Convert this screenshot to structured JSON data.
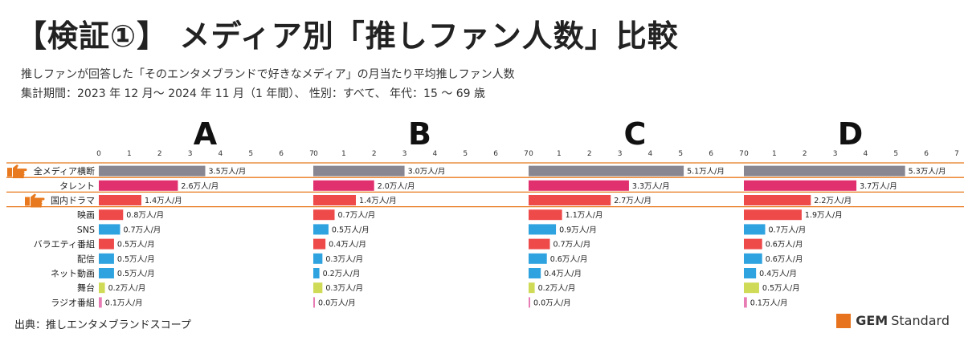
{
  "header": {
    "title": "【検証①】 メディア別「推しファン人数」比較",
    "subtitle1": "推しファンが回答した「そのエンタメブランドで好きなメディア」の月当たり平均推しファン人数",
    "subtitle2": "集計期間：2023 年 12 月～ 2024 年 11 月（1 年間）、 性別：すべて、 年代：15 ～ 69 歳"
  },
  "footer": {
    "source": "出典：推しエンタメブランドスコープ",
    "brand_gem": "GEM",
    "brand_standard": "Standard"
  },
  "colors": {
    "gray": "#878691",
    "magenta": "#e0306e",
    "red": "#ee4a4a",
    "blue": "#2ea3e0",
    "lime": "#cfdb56",
    "pink": "#e87cb4",
    "highlight": "#e8791e"
  },
  "chart_data": {
    "type": "bar",
    "orientation": "horizontal",
    "unit_suffix": "万人/月",
    "xlim": [
      0,
      7
    ],
    "xticks": [
      0,
      1,
      2,
      3,
      4,
      5,
      6,
      7
    ],
    "categories": [
      "全メディア横断",
      "タレント",
      "国内ドラマ",
      "映画",
      "SNS",
      "バラエティ番組",
      "配信",
      "ネット動画",
      "舞台",
      "ラジオ番組"
    ],
    "bar_colors": [
      "gray",
      "magenta",
      "red",
      "red",
      "blue",
      "red",
      "blue",
      "blue",
      "lime",
      "pink"
    ],
    "highlighted_categories": [
      "全メディア横断",
      "国内ドラマ"
    ],
    "highlight_icon": "pointing-hand-icon",
    "panels": [
      {
        "name": "A",
        "values": [
          3.5,
          2.6,
          1.4,
          0.8,
          0.7,
          0.5,
          0.5,
          0.5,
          0.2,
          0.1
        ],
        "labels": [
          "3.5万人/月",
          "2.6万人/月",
          "1.4万人/月",
          "0.8万人/月",
          "0.7万人/月",
          "0.5万人/月",
          "0.5万人/月",
          "0.5万人/月",
          "0.2万人/月",
          "0.1万人/月"
        ]
      },
      {
        "name": "B",
        "values": [
          3.0,
          2.0,
          1.4,
          0.7,
          0.5,
          0.4,
          0.3,
          0.2,
          0.3,
          0.0
        ],
        "labels": [
          "3.0万人/月",
          "2.0万人/月",
          "1.4万人/月",
          "0.7万人/月",
          "0.5万人/月",
          "0.4万人/月",
          "0.3万人/月",
          "0.2万人/月",
          "0.3万人/月",
          "0.0万人/月"
        ]
      },
      {
        "name": "C",
        "values": [
          5.1,
          3.3,
          2.7,
          1.1,
          0.9,
          0.7,
          0.6,
          0.4,
          0.2,
          0.0
        ],
        "labels": [
          "5.1万人/月",
          "3.3万人/月",
          "2.7万人/月",
          "1.1万人/月",
          "0.9万人/月",
          "0.7万人/月",
          "0.6万人/月",
          "0.4万人/月",
          "0.2万人/月",
          "0.0万人/月"
        ]
      },
      {
        "name": "D",
        "values": [
          5.3,
          3.7,
          2.2,
          1.9,
          0.7,
          0.6,
          0.6,
          0.4,
          0.5,
          0.1
        ],
        "labels": [
          "5.3万人/月",
          "3.7万人/月",
          "2.2万人/月",
          "1.9万人/月",
          "0.7万人/月",
          "0.6万人/月",
          "0.6万人/月",
          "0.4万人/月",
          "0.5万人/月",
          "0.1万人/月"
        ]
      }
    ]
  }
}
